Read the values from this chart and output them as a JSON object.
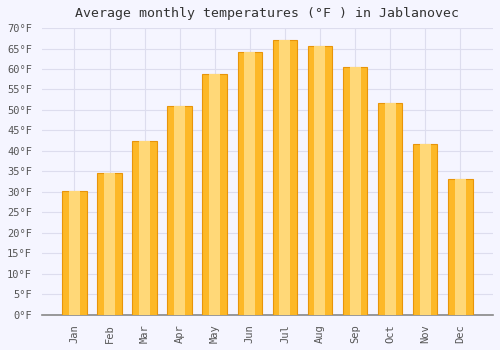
{
  "title": "Average monthly temperatures (°F ) in Jablanovec",
  "months": [
    "Jan",
    "Feb",
    "Mar",
    "Apr",
    "May",
    "Jun",
    "Jul",
    "Aug",
    "Sep",
    "Oct",
    "Nov",
    "Dec"
  ],
  "values": [
    30.2,
    34.7,
    42.3,
    50.9,
    58.8,
    64.2,
    67.1,
    65.7,
    60.4,
    51.6,
    41.7,
    33.1
  ],
  "bar_color_main": "#FDB827",
  "bar_color_edge": "#E8950A",
  "bar_color_light": "#FFD878",
  "background_color": "#F5F5FF",
  "plot_bg_color": "#F5F5FF",
  "grid_color": "#DDDDEE",
  "title_fontsize": 9.5,
  "tick_label_fontsize": 7.5,
  "ylim": [
    0,
    70
  ],
  "ytick_step": 5,
  "ylabel_suffix": "°F"
}
